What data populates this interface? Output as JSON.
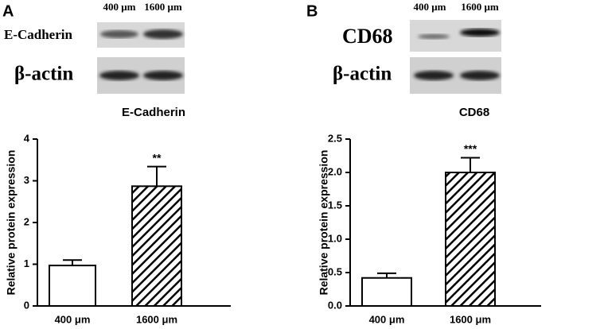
{
  "chart_data": [
    {
      "type": "bar",
      "panel": "A",
      "title": "E-Cadherin",
      "ylabel": "Relative protein expression",
      "categories": [
        "400 μm",
        "1600 μm"
      ],
      "values": [
        0.97,
        2.87
      ],
      "errors": [
        0.13,
        0.47
      ],
      "annotations": [
        null,
        "**"
      ],
      "patterns": [
        "none",
        "diagonal-hatch"
      ],
      "color": "#000000",
      "ylim": [
        0,
        4
      ],
      "yticks": [
        0,
        1,
        2,
        3,
        4
      ],
      "blot_columns": [
        "400 μm",
        "1600 μm"
      ],
      "blot_rows": [
        "E-Cadherin",
        "β-actin"
      ]
    },
    {
      "type": "bar",
      "panel": "B",
      "title": "CD68",
      "ylabel": "Relative protein expression",
      "categories": [
        "400 μm",
        "1600 μm"
      ],
      "values": [
        0.42,
        2.0
      ],
      "errors": [
        0.07,
        0.22
      ],
      "annotations": [
        null,
        "***"
      ],
      "patterns": [
        "none",
        "diagonal-hatch"
      ],
      "color": "#000000",
      "ylim": [
        0,
        2.5
      ],
      "yticks": [
        {
          "value": 0,
          "label": "0.0"
        },
        0.5,
        {
          "value": 1,
          "label": "1.0"
        },
        1.5,
        {
          "value": 2,
          "label": "2.0"
        },
        2.5
      ],
      "blot_columns": [
        "400 μm",
        "1600 μm"
      ],
      "blot_rows": [
        "CD68",
        "β-actin"
      ]
    }
  ]
}
